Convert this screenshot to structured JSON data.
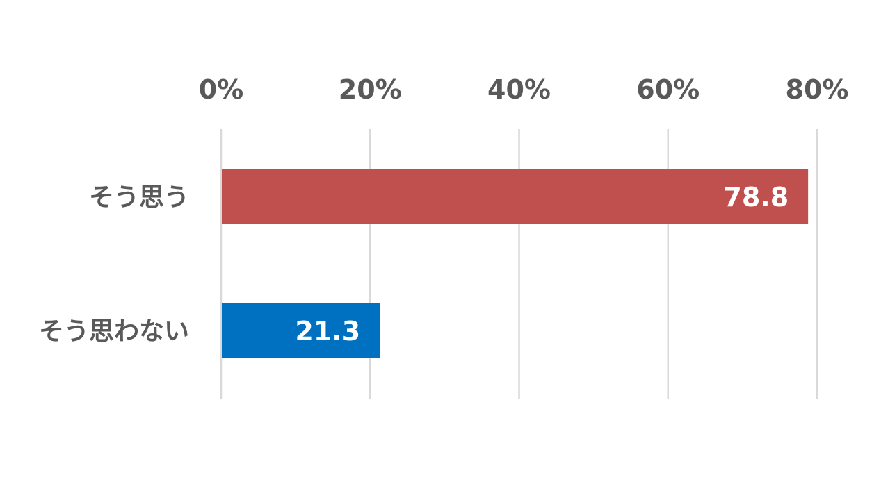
{
  "chart_data": {
    "type": "bar",
    "orientation": "horizontal",
    "categories": [
      "そう思う",
      "そう思わない"
    ],
    "values": [
      78.8,
      21.3
    ],
    "data_labels": [
      "78.8",
      "21.3"
    ],
    "bar_colors": [
      "#c0504d",
      "#0070c0"
    ],
    "xlim": [
      0,
      80
    ],
    "x_ticks": [
      0,
      20,
      40,
      60,
      80
    ],
    "x_tick_labels": [
      "0%",
      "20%",
      "40%",
      "60%",
      "80%"
    ],
    "x_axis_position": "top",
    "grid": true,
    "legend": "none"
  }
}
